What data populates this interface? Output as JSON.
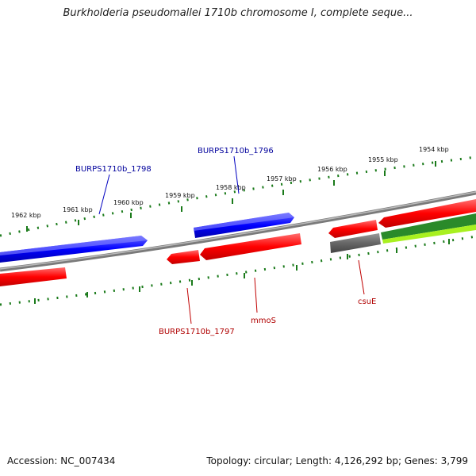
{
  "title": "Burkholderia pseudomallei 1710b chromosome I, complete seque...",
  "footer": {
    "accession": "Accession: NC_007434",
    "stats": "Topology: circular; Length: 4,126,292 bp; Genes: 3,799"
  },
  "ticks": [
    "1962 kbp",
    "1961 kbp",
    "1960 kbp",
    "1959 kbp",
    "1958 kbp",
    "1957 kbp",
    "1956 kbp",
    "1955 kbp",
    "1954 kbp"
  ],
  "gene_labels": {
    "burps_1798": "BURPS1710b_1798",
    "burps_1796": "BURPS1710b_1796",
    "burps_1797": "BURPS1710b_1797",
    "mmos": "mmoS",
    "csue": "csuE"
  },
  "colors": {
    "forward_cds": "#0000ff",
    "reverse_cds": "#ff0000",
    "other_feature": "#666666",
    "green_feature": "#2a8a2a",
    "light_green_feature": "#a8f020",
    "backbone": "#888888",
    "ruler": "#1a7a1a",
    "forward_label": "#00009c",
    "reverse_label": "#b00000"
  }
}
